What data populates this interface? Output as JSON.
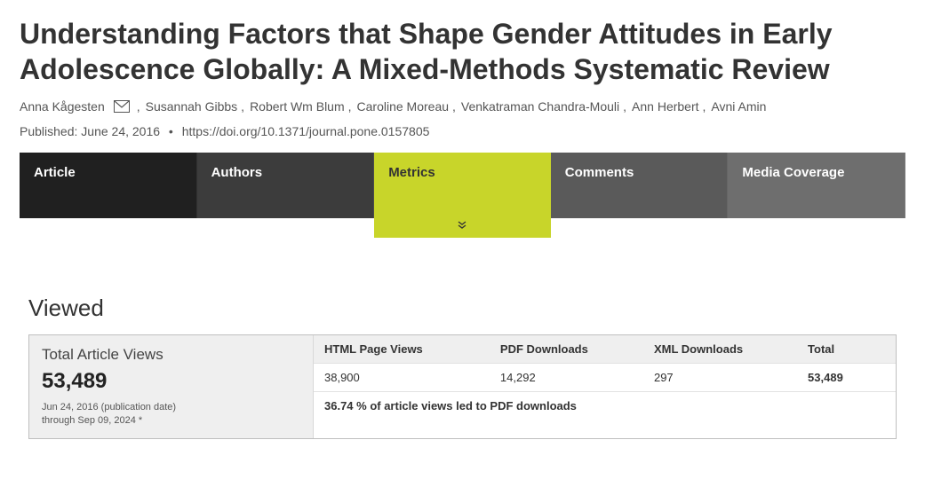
{
  "title": "Understanding Factors that Shape Gender Attitudes in Early Adolescence Globally: A Mixed-Methods Systematic Review",
  "authors": [
    {
      "name": "Anna Kågesten",
      "corresponding": true
    },
    {
      "name": "Susannah Gibbs",
      "corresponding": false
    },
    {
      "name": "Robert Wm Blum",
      "corresponding": false
    },
    {
      "name": "Caroline Moreau",
      "corresponding": false
    },
    {
      "name": "Venkatraman Chandra-Mouli",
      "corresponding": false
    },
    {
      "name": "Ann Herbert",
      "corresponding": false
    },
    {
      "name": "Avni Amin",
      "corresponding": false
    }
  ],
  "pub": {
    "published_label": "Published: ",
    "date": "June 24, 2016",
    "doi": "https://doi.org/10.1371/journal.pone.0157805"
  },
  "tabs": [
    {
      "label": "Article",
      "bg": "#202020",
      "active": false
    },
    {
      "label": "Authors",
      "bg": "#3c3c3c",
      "active": false
    },
    {
      "label": "Metrics",
      "bg": "#c8d52a",
      "active": true
    },
    {
      "label": "Comments",
      "bg": "#5a5a5a",
      "active": false
    },
    {
      "label": "Media Coverage",
      "bg": "#6e6e6e",
      "active": false
    }
  ],
  "viewed": {
    "heading": "Viewed",
    "total_label": "Total Article Views",
    "total_value": "53,489",
    "date_range_line1": "Jun 24, 2016 (publication date)",
    "date_range_line2": "through Sep 09, 2024 *",
    "columns": [
      "HTML Page Views",
      "PDF Downloads",
      "XML Downloads",
      "Total"
    ],
    "values": [
      "38,900",
      "14,292",
      "297",
      "53,489"
    ],
    "note": "36.74 % of article views led to PDF downloads"
  }
}
